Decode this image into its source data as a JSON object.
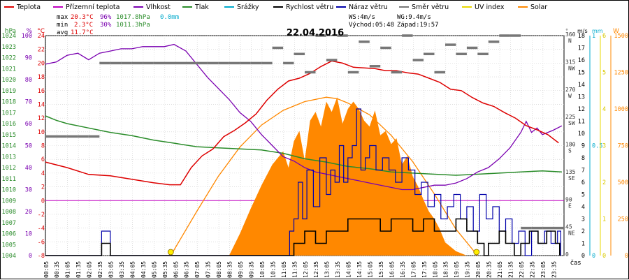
{
  "chart_data": {
    "type": "line",
    "title": "22.04.2016",
    "legend": [
      {
        "name": "Teplota",
        "color": "#dd0000"
      },
      {
        "name": "Přízemní teplota",
        "color": "#c000c0"
      },
      {
        "name": "Vlhkost",
        "color": "#7a00b0"
      },
      {
        "name": "Tlak",
        "color": "#2a8c2a"
      },
      {
        "name": "Srážky",
        "color": "#00aacc"
      },
      {
        "name": "Rychlost větru",
        "color": "#000000"
      },
      {
        "name": "Náraz větru",
        "color": "#0000aa"
      },
      {
        "name": "Směr větru",
        "color": "#777777"
      },
      {
        "name": "UV index",
        "color": "#e8d800"
      },
      {
        "name": "Solar",
        "color": "#ff8800"
      }
    ],
    "stats": {
      "max": {
        "label": "max",
        "temp": "20.3°C",
        "hum": "96%",
        "press": "1017.8hPa",
        "rain": "0.0mm"
      },
      "min": {
        "label": "min",
        "temp": "2.3°C",
        "hum": "30%",
        "press": "1011.3hPa"
      },
      "avg": {
        "label": "avg",
        "temp": "11.7°C"
      },
      "ws": "WS:4m/s",
      "wg": "WG:9.4m/s",
      "sunrise": "Východ:05:48",
      "sunset": "Západ:19:57"
    },
    "x_ticks": [
      "00:05",
      "00:35",
      "01:05",
      "01:35",
      "02:05",
      "02:35",
      "03:05",
      "03:35",
      "04:05",
      "04:35",
      "05:05",
      "05:35",
      "06:05",
      "06:35",
      "07:05",
      "07:35",
      "08:05",
      "08:35",
      "09:05",
      "09:35",
      "10:05",
      "10:35",
      "11:05",
      "11:35",
      "12:05",
      "12:35",
      "13:05",
      "13:35",
      "14:05",
      "14:35",
      "15:05",
      "15:35",
      "16:05",
      "16:35",
      "17:05",
      "17:35",
      "18:05",
      "18:35",
      "19:05",
      "19:35",
      "20:05",
      "20:35",
      "21:05",
      "21:35",
      "22:05",
      "22:35",
      "23:05",
      "23:35"
    ],
    "x_unit": "čas",
    "axes": {
      "press": {
        "unit": "hPa",
        "ticks": [
          "1024",
          "1023",
          "1022",
          "1021",
          "1020",
          "1019",
          "1018",
          "1017",
          "1016",
          "1015",
          "1014",
          "1013",
          "1012",
          "1011",
          "1010",
          "1009",
          "1008",
          "1007",
          "1006",
          "1005",
          "1004"
        ],
        "range": [
          1004,
          1024
        ]
      },
      "hum": {
        "unit": "%",
        "ticks": [
          "100",
          "90",
          "80",
          "70",
          "60",
          "50",
          "40",
          "30",
          "20",
          "10",
          "0"
        ],
        "range": [
          0,
          100
        ]
      },
      "temp": {
        "unit": "°C",
        "ticks": [
          "24",
          "22",
          "20",
          "18",
          "16",
          "14",
          "12",
          "10",
          "8",
          "6",
          "4",
          "2",
          "0",
          "-2",
          "-4",
          "-6",
          "-8"
        ],
        "range": [
          -8,
          24
        ]
      },
      "dir": {
        "unit": "°",
        "ticks": [
          {
            "deg": "360",
            "dir": "N"
          },
          {
            "deg": "315",
            "dir": "NW"
          },
          {
            "deg": "270",
            "dir": "W"
          },
          {
            "deg": "225",
            "dir": "SW"
          },
          {
            "deg": "180",
            "dir": "S"
          },
          {
            "deg": "135",
            "dir": "SE"
          },
          {
            "deg": "90",
            "dir": "E"
          },
          {
            "deg": "45",
            "dir": "NE"
          },
          {
            "deg": "0",
            "dir": ""
          }
        ],
        "range": [
          0,
          360
        ]
      },
      "wind": {
        "unit": "m/s",
        "ticks": [
          "18",
          "17",
          "16",
          "15",
          "14",
          "13",
          "12",
          "11",
          "10",
          "9",
          "8",
          "7",
          "6",
          "5",
          "4",
          "3",
          "2",
          "1",
          "0"
        ],
        "range": [
          0,
          18
        ]
      },
      "rain": {
        "unit": "mm",
        "ticks": [
          "1",
          "0.5",
          "0"
        ],
        "range": [
          0,
          1
        ]
      },
      "uv": {
        "unit": "",
        "ticks": [
          "6",
          "5",
          "4",
          "3",
          "2",
          "1",
          "0"
        ],
        "range": [
          0,
          6
        ]
      },
      "solar": {
        "unit": "W",
        "ticks": [
          "1500",
          "1250",
          "1000",
          "750",
          "500",
          "250",
          "0"
        ],
        "range": [
          0,
          1500
        ]
      }
    },
    "series": {
      "teplota": {
        "x": [
          0,
          1,
          2,
          3,
          4,
          5,
          5.75,
          6.25,
          6.75,
          7.25,
          7.75,
          8.25,
          8.75,
          9.25,
          9.75,
          10.25,
          10.75,
          11.25,
          11.75,
          12.25,
          12.75,
          13.25,
          13.75,
          14.25,
          14.75,
          15.25,
          15.75,
          16.25,
          16.75,
          17.25,
          17.75,
          18.25,
          18.75,
          19.25,
          19.75,
          20.25,
          20.75,
          21.25,
          21.75,
          22.25,
          22.75,
          23.25,
          23.75
        ],
        "y": [
          5.6,
          4.8,
          3.8,
          3.6,
          3.1,
          2.6,
          2.3,
          2.3,
          4.8,
          6.5,
          7.5,
          9.3,
          10.2,
          11.3,
          12.6,
          14.6,
          16.2,
          17.4,
          17.8,
          18.5,
          19.5,
          20.3,
          20.0,
          19.4,
          19.3,
          19.2,
          18.9,
          18.9,
          18.6,
          18.4,
          17.8,
          17.2,
          16.2,
          16.0,
          15.0,
          14.2,
          13.7,
          12.8,
          12.0,
          10.9,
          10.3,
          9.6,
          8.4
        ]
      },
      "vlhkost": {
        "x": [
          0,
          0.5,
          1,
          1.5,
          2,
          2.5,
          3,
          3.5,
          4,
          4.5,
          5,
          5.5,
          5.95,
          6.5,
          7,
          7.5,
          8,
          8.5,
          9,
          9.5,
          10,
          10.5,
          11,
          11.5,
          12,
          12.5,
          13,
          13.5,
          14,
          14.5,
          15,
          15.5,
          16,
          16.5,
          17,
          17.5,
          18,
          18.5,
          19,
          19.5,
          20,
          20.5,
          21,
          21.5,
          22,
          22.25,
          22.5,
          22.75,
          23,
          23.5,
          23.9
        ],
        "y": [
          87,
          88,
          91,
          92,
          89,
          92,
          93,
          94,
          94,
          95,
          95,
          95,
          96,
          93,
          87,
          81,
          76,
          71,
          65,
          61,
          55,
          50,
          45,
          43,
          40,
          38,
          37,
          36,
          35,
          34,
          33,
          32,
          31,
          30,
          30,
          31,
          32,
          32,
          33,
          35,
          38,
          40,
          44,
          49,
          56,
          61,
          56,
          58,
          55,
          57,
          59
        ]
      },
      "tlak": {
        "x": [
          0,
          0.5,
          1,
          2,
          3,
          4,
          5,
          6,
          7,
          8,
          9,
          10,
          11,
          12,
          13,
          14,
          15,
          16,
          17,
          18,
          19,
          20,
          21,
          22,
          23,
          23.9
        ],
        "y": [
          1016.7,
          1016.3,
          1016.0,
          1015.6,
          1015.2,
          1014.9,
          1014.5,
          1014.2,
          1013.9,
          1013.8,
          1013.7,
          1013.6,
          1013.3,
          1012.8,
          1012.5,
          1012.1,
          1011.9,
          1011.6,
          1011.5,
          1011.4,
          1011.3,
          1011.4,
          1011.5,
          1011.6,
          1011.7,
          1011.6
        ]
      },
      "rychlost": {
        "x": [
          0,
          2.5,
          2.6,
          2.8,
          3.0,
          11.3,
          11.5,
          12,
          12.5,
          13,
          13.5,
          14,
          14.5,
          15,
          15.5,
          16,
          16.5,
          17,
          17.5,
          18,
          18.5,
          19,
          19.5,
          20,
          20.3,
          20.5,
          21,
          21.3,
          21.7,
          22,
          22.4,
          22.8,
          23.2,
          23.6,
          23.8
        ],
        "y": [
          0,
          0,
          1,
          1,
          0,
          0,
          1,
          2,
          1,
          2,
          2,
          3,
          3,
          3,
          2,
          3,
          3,
          2,
          3,
          2,
          2,
          3,
          2,
          1,
          0,
          1,
          2,
          1,
          0,
          1,
          2,
          1,
          2,
          1,
          0
        ]
      },
      "naraz": {
        "x": [
          0,
          2.5,
          2.6,
          2.8,
          3.0,
          11.2,
          11.3,
          11.5,
          11.7,
          11.9,
          12.1,
          12.4,
          12.7,
          13,
          13.2,
          13.4,
          13.6,
          13.8,
          14,
          14.2,
          14.4,
          14.6,
          14.8,
          15,
          15.3,
          15.6,
          15.9,
          16.2,
          16.5,
          16.8,
          17.1,
          17.4,
          17.7,
          18,
          18.3,
          18.6,
          18.9,
          19.2,
          19.5,
          19.8,
          20.1,
          20.4,
          20.7,
          21,
          21.3,
          21.6,
          21.9,
          22.2,
          22.5,
          22.8,
          23.1,
          23.4,
          23.7,
          23.85
        ],
        "y": [
          0,
          0,
          2,
          2,
          0,
          0,
          2,
          3,
          6,
          3,
          7,
          4,
          8,
          5,
          7,
          6,
          9,
          6,
          8,
          9,
          12,
          7,
          8,
          9,
          7,
          8,
          7,
          6,
          8,
          7,
          5,
          6,
          4,
          5,
          3,
          4,
          5,
          3,
          4,
          2,
          5,
          3,
          4,
          2,
          3,
          1,
          2,
          0,
          2,
          1,
          2,
          1,
          2,
          0
        ]
      },
      "smer": {
        "x": [
          0,
          0.5,
          1,
          1.5,
          2,
          2.5,
          3,
          3.5,
          4,
          4.5,
          5,
          5.5,
          6,
          6.5,
          7,
          7.5,
          8,
          8.5,
          9,
          9.5,
          10,
          10.5,
          11,
          11.5,
          12,
          12.5,
          13,
          13.5,
          14,
          14.5,
          15,
          15.5,
          16,
          16.5,
          17,
          17.5,
          18,
          18.5,
          19,
          19.5,
          20,
          20.5,
          21,
          21.5,
          22,
          22.5,
          23,
          23.5
        ],
        "y": [
          195,
          195,
          195,
          195,
          195,
          315,
          315,
          315,
          315,
          315,
          315,
          315,
          315,
          315,
          315,
          315,
          315,
          315,
          315,
          315,
          315,
          340,
          315,
          330,
          300,
          360,
          320,
          360,
          300,
          350,
          310,
          340,
          300,
          360,
          320,
          330,
          300,
          345,
          330,
          340,
          330,
          350,
          360,
          360,
          45,
          45,
          45,
          45
        ]
      },
      "solar": {
        "x": [
          8.5,
          9,
          9.5,
          10,
          10.5,
          11,
          11.25,
          11.5,
          11.75,
          12,
          12.25,
          12.5,
          12.75,
          13,
          13.25,
          13.5,
          13.75,
          14,
          14.25,
          14.5,
          14.75,
          15,
          15.25,
          15.5,
          15.75,
          16,
          16.25,
          16.5,
          16.75,
          17,
          17.25,
          17.5,
          17.75,
          18,
          18.25,
          18.5,
          19,
          19.5
        ],
        "y": [
          0,
          150,
          320,
          480,
          620,
          710,
          600,
          780,
          850,
          650,
          920,
          980,
          880,
          1050,
          980,
          1080,
          900,
          1000,
          1050,
          1000,
          920,
          880,
          990,
          820,
          850,
          760,
          800,
          620,
          680,
          540,
          470,
          380,
          300,
          250,
          180,
          90,
          30,
          0
        ]
      },
      "solar_max": {
        "x": [
          5.8,
          7,
          8,
          9,
          10,
          11,
          12,
          13,
          13.5,
          14,
          15,
          16,
          17,
          18,
          19,
          20
        ],
        "y": [
          0,
          300,
          540,
          740,
          890,
          990,
          1050,
          1080,
          1070,
          1040,
          960,
          820,
          640,
          420,
          180,
          0
        ]
      },
      "uv": {
        "x": [
          5.8,
          19.8
        ],
        "y": [
          0,
          0
        ]
      }
    },
    "sun_markers": [
      5.8,
      19.95
    ]
  }
}
